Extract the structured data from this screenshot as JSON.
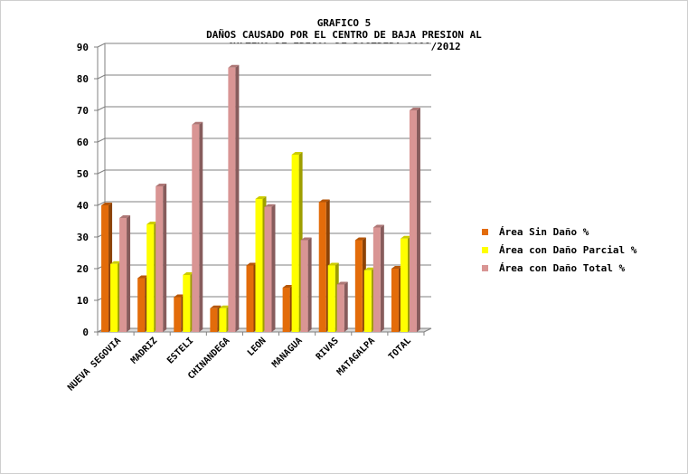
{
  "chart_data": {
    "type": "bar",
    "title": [
      "GRAFICO 5",
      "DAÑOS CAUSADO POR EL CENTRO DE BAJA PRESION AL",
      "CULTIVO DE FRIJOL DE POSTRERA 2011/2012"
    ],
    "categories": [
      "NUEVA SEGOVIA",
      "MADRIZ",
      "ESTELI",
      "CHINANDEGA",
      "LEON",
      "MANAGUA",
      "RIVAS",
      "MATAGALPA",
      "TOTAL"
    ],
    "ylim": [
      0,
      90
    ],
    "yticks": [
      "0",
      "10",
      "20",
      "30",
      "40",
      "50",
      "60",
      "70",
      "80",
      "90"
    ],
    "grid": true,
    "legend_position": "right",
    "series": [
      {
        "name": "Área Sin Daño %",
        "color": "#e36c0a",
        "values": [
          40,
          17,
          11,
          7.5,
          21,
          14,
          41,
          29,
          20
        ]
      },
      {
        "name": "Área con Daño Parcial %",
        "color": "#ffff00",
        "values": [
          21.5,
          34,
          18,
          7.5,
          42,
          56,
          21,
          19.5,
          29.5
        ]
      },
      {
        "name": "Área con Daño Total %",
        "color": "#d99594",
        "values": [
          36,
          46,
          65.5,
          83.5,
          39.5,
          29,
          15,
          33,
          70
        ]
      }
    ]
  }
}
